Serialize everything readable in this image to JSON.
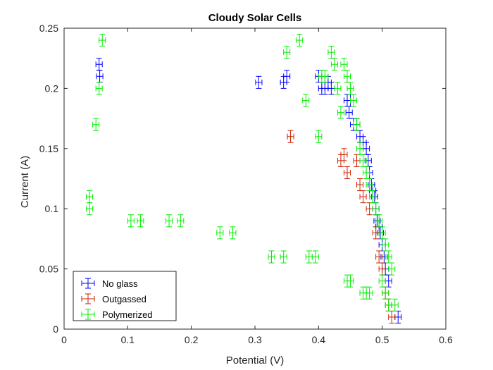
{
  "chart_data": {
    "type": "scatter",
    "title": "Cloudy Solar Cells",
    "xlabel": "Potential (V)",
    "ylabel": "Current (A)",
    "xlim": [
      0,
      0.6
    ],
    "ylim": [
      0,
      0.25
    ],
    "xticks": [
      "0",
      "0.1",
      "0.2",
      "0.3",
      "0.4",
      "0.5",
      "0.6"
    ],
    "yticks": [
      "0",
      "0.05",
      "0.1",
      "0.15",
      "0.2",
      "0.25"
    ],
    "grid": false,
    "legend_position": "bottom-left",
    "error_bars": {
      "x": 0.005,
      "y": 0.005
    },
    "series": [
      {
        "name": "No glass",
        "color": "#0000ff",
        "x": [
          0.055,
          0.056,
          0.306,
          0.345,
          0.35,
          0.4,
          0.405,
          0.41,
          0.415,
          0.42,
          0.445,
          0.448,
          0.45,
          0.455,
          0.46,
          0.465,
          0.47,
          0.475,
          0.478,
          0.48,
          0.483,
          0.485,
          0.488,
          0.49,
          0.492,
          0.495,
          0.497,
          0.5,
          0.503,
          0.505,
          0.51,
          0.525
        ],
        "y": [
          0.22,
          0.21,
          0.205,
          0.205,
          0.21,
          0.21,
          0.2,
          0.2,
          0.205,
          0.2,
          0.19,
          0.18,
          0.19,
          0.17,
          0.17,
          0.16,
          0.155,
          0.15,
          0.14,
          0.13,
          0.12,
          0.115,
          0.11,
          0.1,
          0.09,
          0.085,
          0.08,
          0.07,
          0.06,
          0.05,
          0.04,
          0.01
        ]
      },
      {
        "name": "Outgassed",
        "color": "#cc2200",
        "x": [
          0.356,
          0.435,
          0.44,
          0.445,
          0.46,
          0.465,
          0.47,
          0.48,
          0.49,
          0.495,
          0.5,
          0.505,
          0.51,
          0.515
        ],
        "y": [
          0.16,
          0.14,
          0.145,
          0.13,
          0.14,
          0.12,
          0.11,
          0.1,
          0.08,
          0.06,
          0.05,
          0.03,
          0.02,
          0.01
        ]
      },
      {
        "name": "Polymerized",
        "color": "#00ee00",
        "x": [
          0.06,
          0.055,
          0.05,
          0.04,
          0.04,
          0.105,
          0.12,
          0.165,
          0.183,
          0.245,
          0.265,
          0.326,
          0.345,
          0.35,
          0.37,
          0.38,
          0.385,
          0.395,
          0.4,
          0.405,
          0.41,
          0.42,
          0.425,
          0.43,
          0.435,
          0.44,
          0.445,
          0.45,
          0.455,
          0.46,
          0.465,
          0.47,
          0.475,
          0.48,
          0.485,
          0.49,
          0.495,
          0.5,
          0.505,
          0.51,
          0.515,
          0.445,
          0.45,
          0.47,
          0.475,
          0.48,
          0.5,
          0.505,
          0.51,
          0.52
        ],
        "y": [
          0.24,
          0.2,
          0.17,
          0.11,
          0.1,
          0.09,
          0.09,
          0.09,
          0.09,
          0.08,
          0.08,
          0.06,
          0.06,
          0.23,
          0.24,
          0.19,
          0.06,
          0.06,
          0.16,
          0.21,
          0.21,
          0.23,
          0.22,
          0.2,
          0.18,
          0.22,
          0.21,
          0.2,
          0.19,
          0.17,
          0.15,
          0.14,
          0.13,
          0.12,
          0.11,
          0.1,
          0.09,
          0.08,
          0.07,
          0.06,
          0.05,
          0.04,
          0.04,
          0.03,
          0.03,
          0.03,
          0.04,
          0.03,
          0.02,
          0.02
        ]
      }
    ]
  }
}
